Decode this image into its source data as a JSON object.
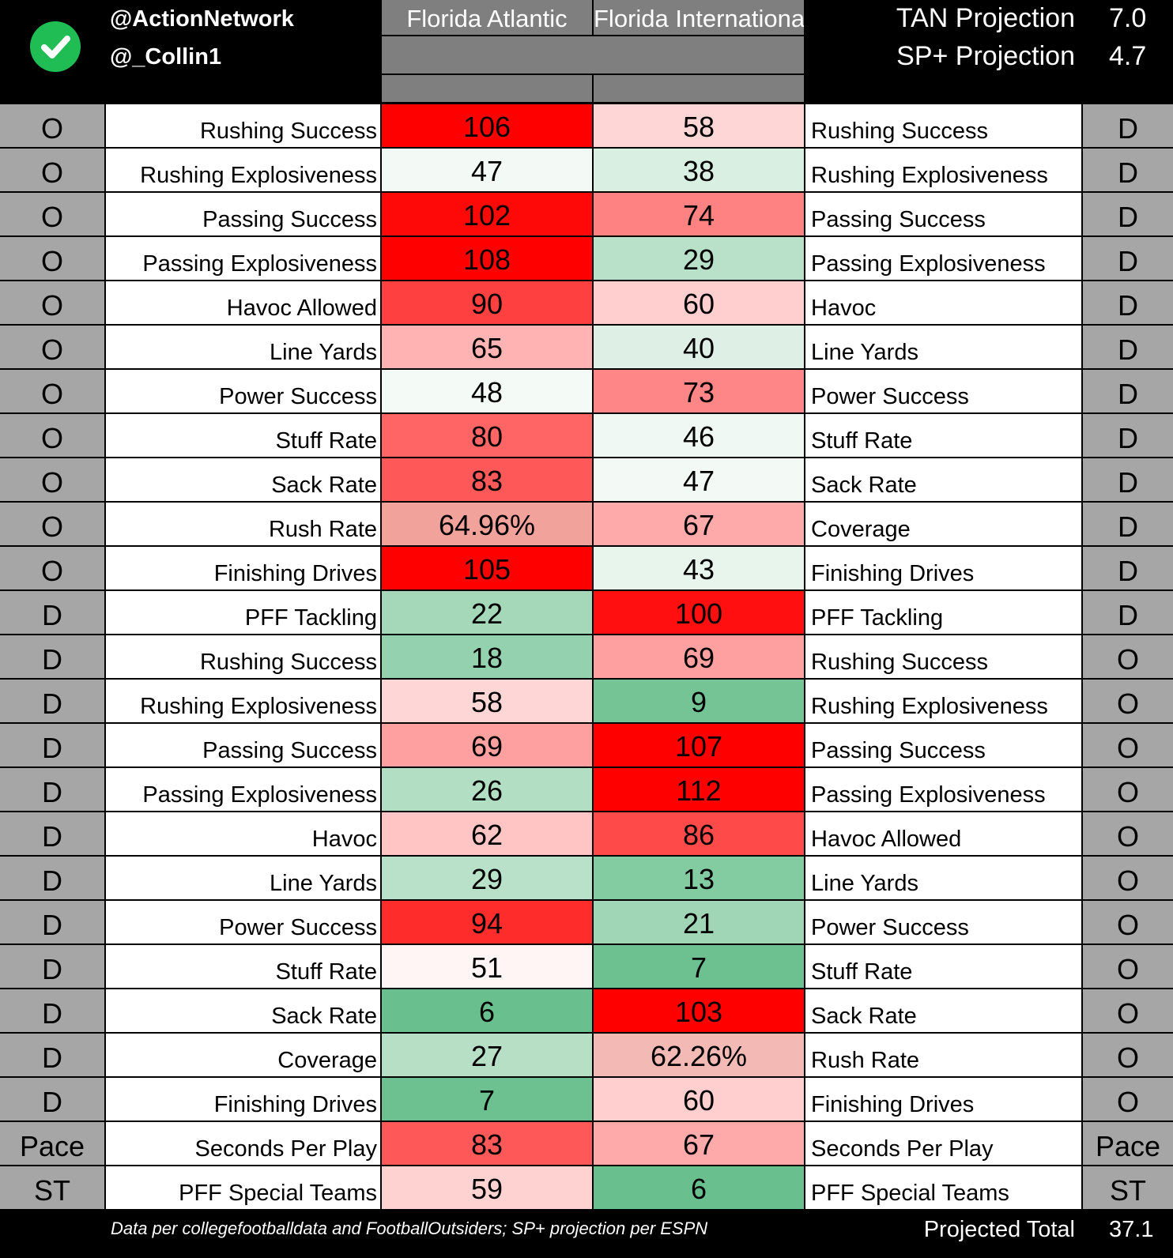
{
  "header": {
    "handle1": "@ActionNetwork",
    "handle2": "@_Collin1",
    "team_a": "Florida Atlantic",
    "team_b": "Florida International",
    "tan_label": "TAN Projection",
    "tan_value": "7.0",
    "sp_label": "SP+ Projection",
    "sp_value": "4.7"
  },
  "rows": [
    {
      "left_side": "O",
      "left_label": "Rushing Success",
      "a": "106",
      "a_color": "#ff0000",
      "b": "58",
      "b_color": "#ffd6d6",
      "right_label": "Rushing Success",
      "right_side": "D"
    },
    {
      "left_side": "O",
      "left_label": "Rushing Explosiveness",
      "a": "47",
      "a_color": "#f3faf6",
      "b": "38",
      "b_color": "#d9efe2",
      "right_label": "Rushing Explosiveness",
      "right_side": "D"
    },
    {
      "left_side": "O",
      "left_label": "Passing Success",
      "a": "102",
      "a_color": "#ff0808",
      "b": "74",
      "b_color": "#ff8282",
      "right_label": "Passing Success",
      "right_side": "D"
    },
    {
      "left_side": "O",
      "left_label": "Passing Explosiveness",
      "a": "108",
      "a_color": "#ff0000",
      "b": "29",
      "b_color": "#b9e1c9",
      "right_label": "Passing Explosiveness",
      "right_side": "D"
    },
    {
      "left_side": "O",
      "left_label": "Havoc Allowed",
      "a": "90",
      "a_color": "#ff4040",
      "b": "60",
      "b_color": "#ffcfcf",
      "right_label": "Havoc",
      "right_side": "D"
    },
    {
      "left_side": "O",
      "left_label": "Line Yards",
      "a": "65",
      "a_color": "#ffb3b3",
      "b": "40",
      "b_color": "#deefe5",
      "right_label": "Line Yards",
      "right_side": "D"
    },
    {
      "left_side": "O",
      "left_label": "Power Success",
      "a": "48",
      "a_color": "#f4fbf7",
      "b": "73",
      "b_color": "#ff8686",
      "right_label": "Power Success",
      "right_side": "D"
    },
    {
      "left_side": "O",
      "left_label": "Stuff Rate",
      "a": "80",
      "a_color": "#ff6565",
      "b": "46",
      "b_color": "#eff8f3",
      "right_label": "Stuff Rate",
      "right_side": "D"
    },
    {
      "left_side": "O",
      "left_label": "Sack Rate",
      "a": "83",
      "a_color": "#ff5858",
      "b": "47",
      "b_color": "#f3faf6",
      "right_label": "Sack Rate",
      "right_side": "D"
    },
    {
      "left_side": "O",
      "left_label": "Rush Rate",
      "a": "64.96%",
      "a_color": "#f0a29b",
      "b": "67",
      "b_color": "#ffaaaa",
      "right_label": "Coverage",
      "right_side": "D"
    },
    {
      "left_side": "O",
      "left_label": "Finishing Drives",
      "a": "105",
      "a_color": "#ff0000",
      "b": "43",
      "b_color": "#e8f5ed",
      "right_label": "Finishing Drives",
      "right_side": "D"
    },
    {
      "left_side": "D",
      "left_label": "PFF Tackling",
      "a": "22",
      "a_color": "#a4d8b9",
      "b": "100",
      "b_color": "#ff0f0f",
      "right_label": "PFF Tackling",
      "right_side": "D"
    },
    {
      "left_side": "D",
      "left_label": "Rushing Success",
      "a": "18",
      "a_color": "#94d1ae",
      "b": "69",
      "b_color": "#ffa0a0",
      "right_label": "Rushing Success",
      "right_side": "O"
    },
    {
      "left_side": "D",
      "left_label": "Rushing Explosiveness",
      "a": "58",
      "a_color": "#ffd6d6",
      "b": "9",
      "b_color": "#74c496",
      "right_label": "Rushing Explosiveness",
      "right_side": "O"
    },
    {
      "left_side": "D",
      "left_label": "Passing Success",
      "a": "69",
      "a_color": "#ffa0a0",
      "b": "107",
      "b_color": "#ff0000",
      "right_label": "Passing Success",
      "right_side": "O"
    },
    {
      "left_side": "D",
      "left_label": "Passing Explosiveness",
      "a": "26",
      "a_color": "#b2dec3",
      "b": "112",
      "b_color": "#ff0000",
      "right_label": "Passing Explosiveness",
      "right_side": "O"
    },
    {
      "left_side": "D",
      "left_label": "Havoc",
      "a": "62",
      "a_color": "#ffc5c5",
      "b": "86",
      "b_color": "#ff4a4a",
      "right_label": "Havoc Allowed",
      "right_side": "O"
    },
    {
      "left_side": "D",
      "left_label": "Line Yards",
      "a": "29",
      "a_color": "#b9e1c9",
      "b": "13",
      "b_color": "#83cba1",
      "right_label": "Line Yards",
      "right_side": "O"
    },
    {
      "left_side": "D",
      "left_label": "Power Success",
      "a": "94",
      "a_color": "#ff2c2c",
      "b": "21",
      "b_color": "#a0d6b6",
      "right_label": "Power Success",
      "right_side": "O"
    },
    {
      "left_side": "D",
      "left_label": "Stuff Rate",
      "a": "51",
      "a_color": "#fff5f5",
      "b": "7",
      "b_color": "#6dc191",
      "right_label": "Stuff Rate",
      "right_side": "O"
    },
    {
      "left_side": "D",
      "left_label": "Sack Rate",
      "a": "6",
      "a_color": "#69bf8e",
      "b": "103",
      "b_color": "#ff0000",
      "right_label": "Sack Rate",
      "right_side": "O"
    },
    {
      "left_side": "D",
      "left_label": "Coverage",
      "a": "27",
      "a_color": "#b6dfc6",
      "b": "62.26%",
      "b_color": "#f2b9b5",
      "right_label": "Rush Rate",
      "right_side": "O"
    },
    {
      "left_side": "D",
      "left_label": "Finishing Drives",
      "a": "7",
      "a_color": "#6dc191",
      "b": "60",
      "b_color": "#ffcfcf",
      "right_label": "Finishing Drives",
      "right_side": "O"
    },
    {
      "left_side": "Pace",
      "left_label": "Seconds Per Play",
      "a": "83",
      "a_color": "#ff5858",
      "b": "67",
      "b_color": "#ffaaaa",
      "right_label": "Seconds Per Play",
      "right_side": "Pace"
    },
    {
      "left_side": "ST",
      "left_label": "PFF Special Teams",
      "a": "59",
      "a_color": "#ffd2d2",
      "b": "6",
      "b_color": "#69bf8e",
      "right_label": "PFF Special Teams",
      "right_side": "ST"
    }
  ],
  "footer": {
    "source": "Data per collegefootballdata and FootballOutsiders; SP+ projection per ESPN",
    "total_label": "Projected Total",
    "total_value": "37.1"
  }
}
